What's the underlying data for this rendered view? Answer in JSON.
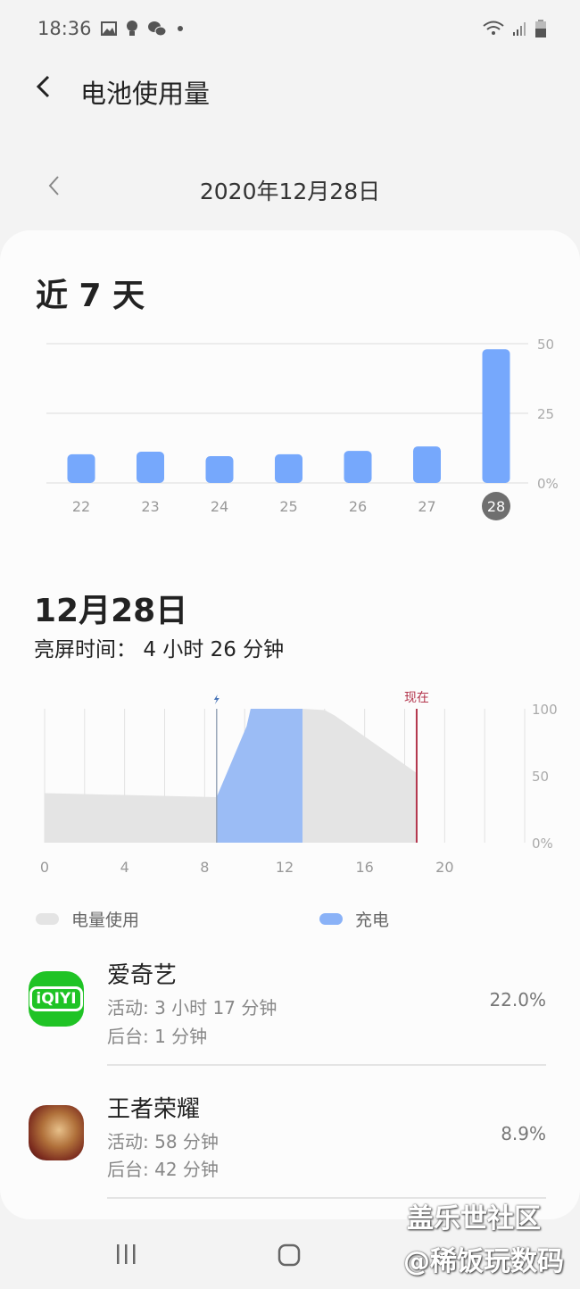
{
  "status_bar": {
    "time": "18:36",
    "icons": [
      "image-icon",
      "bulb-icon",
      "wechat-icon",
      "dot-icon",
      "wifi-icon",
      "signal-icon",
      "battery-icon"
    ]
  },
  "header": {
    "title": "电池使用量",
    "back_icon": "back-arrow-icon"
  },
  "date_nav": {
    "date": "2020年12月28日",
    "prev_icon": "chevron-left-icon"
  },
  "week": {
    "title": "近 7 天"
  },
  "chart_data": [
    {
      "type": "bar",
      "categories": [
        "22",
        "23",
        "24",
        "25",
        "26",
        "27",
        "28"
      ],
      "values": [
        10.3,
        11.2,
        9.6,
        10.3,
        11.5,
        13.1,
        48
      ],
      "selected": "28",
      "yticks": [
        "0%",
        "25",
        "50"
      ],
      "ylim": [
        0,
        50
      ],
      "grid": true,
      "color": "#76a8fc"
    },
    {
      "type": "area",
      "xticks": [
        "0",
        "4",
        "8",
        "12",
        "16",
        "20"
      ],
      "yticks": [
        "0%",
        "50",
        "100"
      ],
      "xlim": [
        0,
        24
      ],
      "ylim": [
        0,
        100
      ],
      "grid": true,
      "usage": [
        [
          0,
          37
        ],
        [
          8.6,
          34
        ]
      ],
      "charging": [
        [
          8.6,
          34
        ],
        [
          10.1,
          87
        ],
        [
          10.3,
          100
        ],
        [
          12.9,
          100
        ]
      ],
      "usage_after": [
        [
          12.9,
          100
        ],
        [
          14,
          99
        ],
        [
          14.5,
          95
        ],
        [
          18.6,
          52
        ]
      ],
      "charge_marker_icon": "lightning-icon",
      "now_label": "现在",
      "now_hour": 18.6,
      "colors": {
        "usage": "#e4e4e4",
        "charging": "#9bbcf5",
        "now": "#b3364d"
      }
    }
  ],
  "day": {
    "title": "12月28日",
    "screen_label": "亮屏时间：",
    "screen_value": "4 小时 26 分钟"
  },
  "legend": {
    "usage": "电量使用",
    "charging": "充电"
  },
  "apps": [
    {
      "name": "爱奇艺",
      "active": "活动: 3 小时 17 分钟",
      "background": "后台: 1 分钟",
      "percent": "22.0%",
      "icon": "iqiyi-icon",
      "icon_text": "iQIYI"
    },
    {
      "name": "王者荣耀",
      "active": "活动: 58 分钟",
      "background": "后台: 42 分钟",
      "percent": "8.9%",
      "icon": "honor-of-kings-icon"
    }
  ],
  "watermark": {
    "line1": "盖乐世社区",
    "line2": "@稀饭玩数码"
  }
}
